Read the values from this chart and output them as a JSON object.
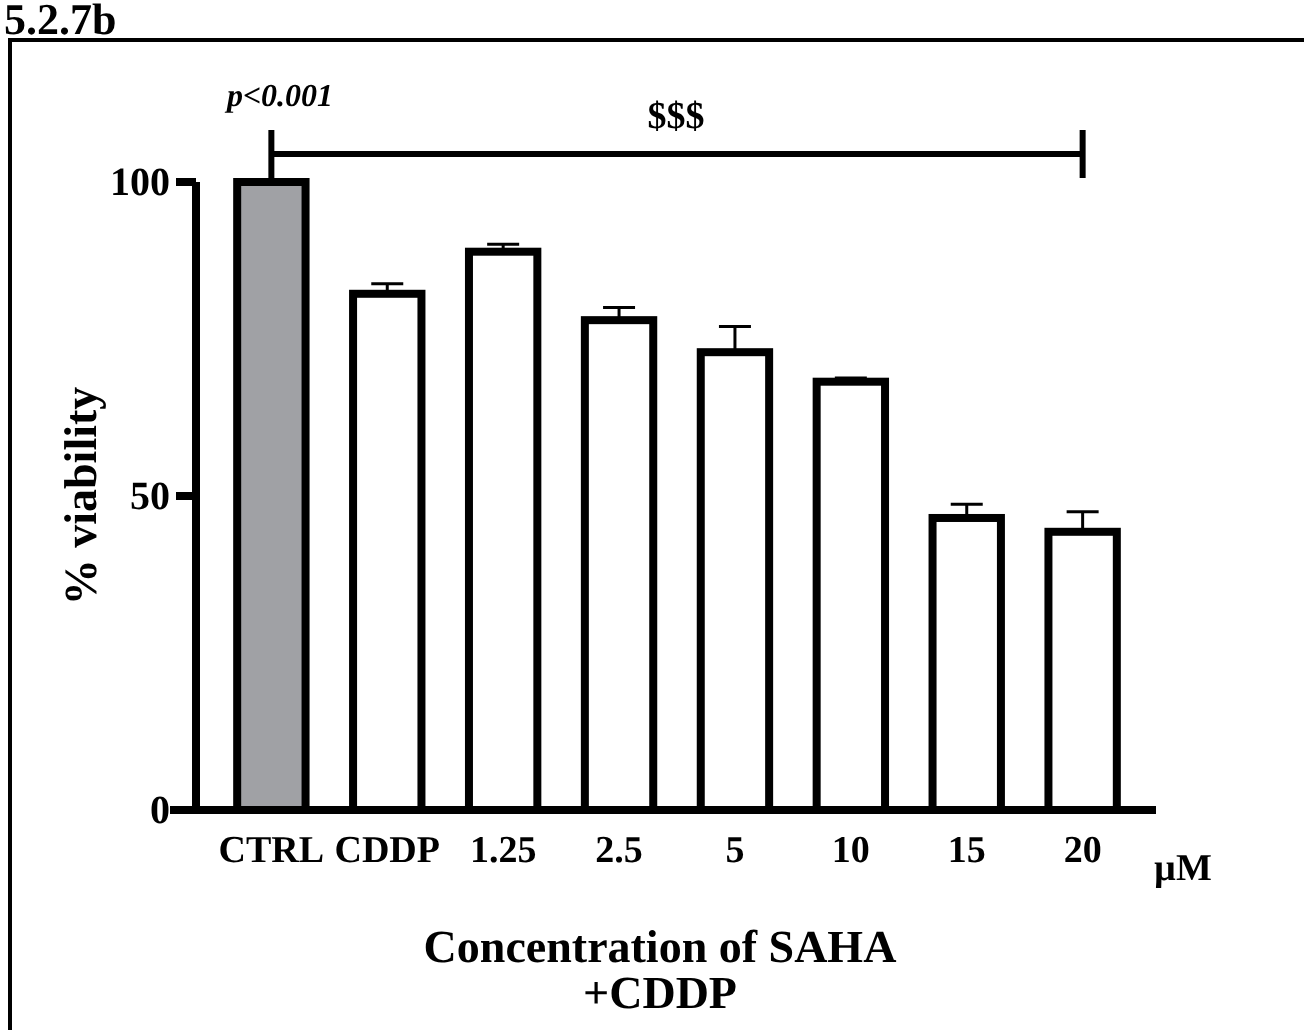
{
  "chart_data": {
    "type": "bar",
    "title": "5.2.7b",
    "xlabel": "Concentration of SAHA\n+CDDP",
    "ylabel": "% viability",
    "categories": [
      "CTRL",
      "CDDP",
      "1.25",
      "2.5",
      "5",
      "10",
      "15",
      "20"
    ],
    "values": [
      100,
      82.2,
      88.9,
      78,
      72.9,
      68.2,
      46.5,
      44.3
    ],
    "colors": [
      "#a0a1a5",
      "#ffffff",
      "#ffffff",
      "#ffffff",
      "#ffffff",
      "#ffffff",
      "#ffffff",
      "#ffffff"
    ],
    "errors": [
      null,
      [
        82.2,
        83.8
      ],
      [
        88.9,
        90.1
      ],
      [
        78,
        80
      ],
      [
        72.9,
        77
      ],
      [
        68.2,
        68.8
      ],
      [
        46.5,
        48.7
      ],
      [
        44.3,
        47.5
      ]
    ],
    "ylim": [
      0,
      100
    ],
    "yticks": [
      0,
      50,
      100
    ],
    "grid": false,
    "annotations": [
      "p<0.001",
      "$$$",
      "µM"
    ]
  }
}
